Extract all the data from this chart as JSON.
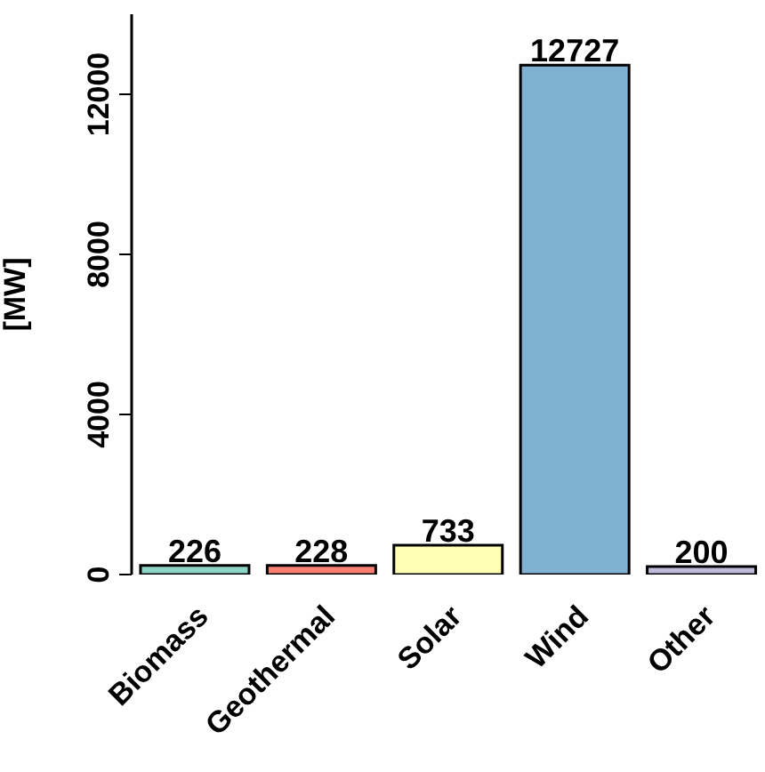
{
  "chart_data": {
    "type": "bar",
    "ylabel": "[MW]",
    "categories": [
      "Biomass",
      "Geothermal",
      "Solar",
      "Wind",
      "Other"
    ],
    "values": [
      226,
      228,
      733,
      12727,
      200
    ],
    "colors": [
      "#8dd3c7",
      "#fb8072",
      "#ffffb3",
      "#80b1d3",
      "#bebada"
    ],
    "ylim": [
      0,
      14000
    ],
    "yticks": [
      0,
      4000,
      8000,
      12000
    ],
    "data_labels": true,
    "grid": false,
    "legend": false
  }
}
